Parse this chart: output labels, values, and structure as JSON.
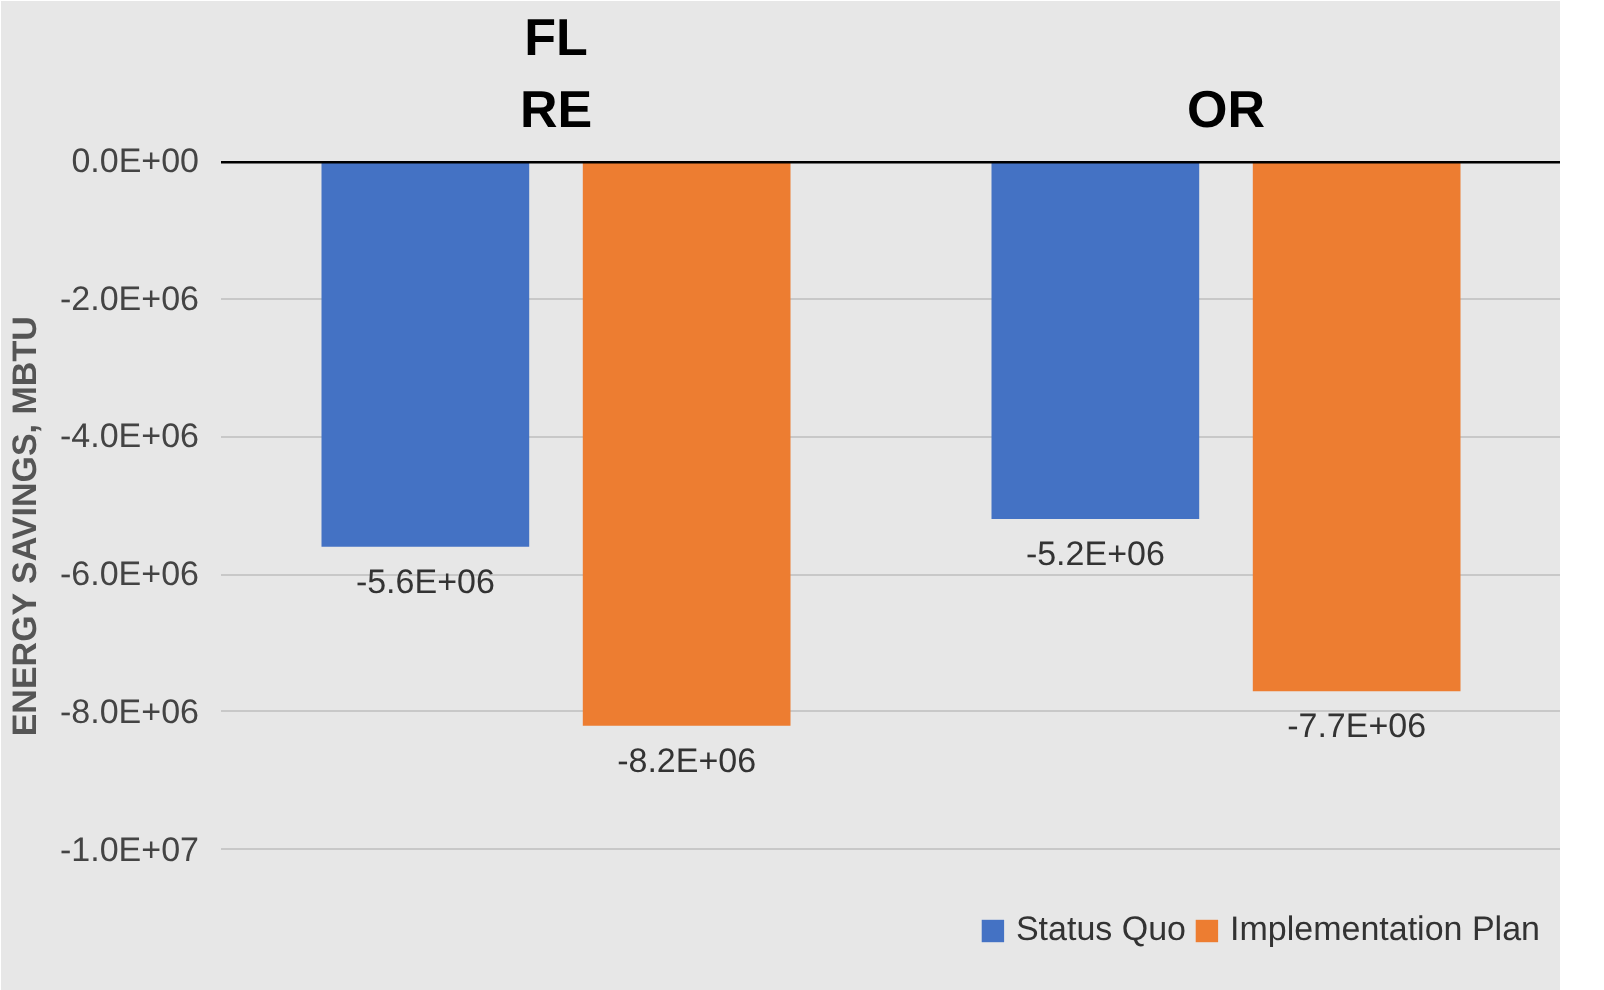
{
  "chart_data": {
    "type": "bar",
    "ylabel": "ENERGY SAVINGS, MBTU",
    "categories": [
      "FL RE",
      "OR"
    ],
    "series": [
      {
        "name": "Status Quo",
        "color": "#4472c4",
        "values": [
          -5600000,
          -5200000
        ]
      },
      {
        "name": "Implementation Plan",
        "color": "#ed7d31",
        "values": [
          -8200000,
          -7700000
        ]
      }
    ],
    "ylim": [
      -10600000,
      0
    ],
    "yticks": [
      {
        "value": 0,
        "label": "0.0E+00"
      },
      {
        "value": -2000000,
        "label": "-2.0E+06"
      },
      {
        "value": -4000000,
        "label": "-4.0E+06"
      },
      {
        "value": -6000000,
        "label": "-6.0E+06"
      },
      {
        "value": -8000000,
        "label": "-8.0E+06"
      },
      {
        "value": -10000000,
        "label": "-1.0E+07"
      }
    ],
    "value_labels": [
      [
        "-5.6E+06",
        "-5.2E+06"
      ],
      [
        "-8.2E+06",
        "-7.7E+06"
      ]
    ],
    "grid": "y",
    "legend": "bottom"
  }
}
